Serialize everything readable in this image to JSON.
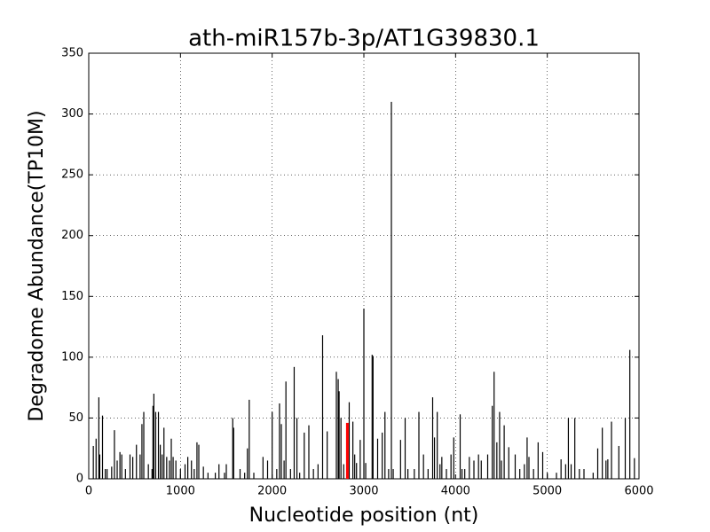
{
  "chart_data": {
    "type": "stem",
    "title": "ath-miR157b-3p/AT1G39830.1",
    "x_label": "Nucleotide position (nt)",
    "y_label": "Degradome Abundance(TP10M)",
    "xlim": [
      0,
      6000
    ],
    "ylim": [
      0,
      350
    ],
    "xticks": [
      0,
      1000,
      2000,
      3000,
      4000,
      5000,
      6000
    ],
    "yticks": [
      0,
      50,
      100,
      150,
      200,
      250,
      300,
      350
    ],
    "grid": true,
    "series": [
      {
        "color": "#000000",
        "x": [
          50,
          80,
          110,
          120,
          150,
          180,
          200,
          250,
          280,
          310,
          340,
          360,
          400,
          450,
          480,
          520,
          560,
          580,
          600,
          650,
          690,
          700,
          710,
          730,
          760,
          780,
          800,
          820,
          850,
          880,
          900,
          920,
          950,
          1000,
          1050,
          1080,
          1120,
          1150,
          1180,
          1200,
          1250,
          1300,
          1380,
          1420,
          1480,
          1500,
          1570,
          1580,
          1650,
          1700,
          1730,
          1750,
          1800,
          1900,
          1950,
          2000,
          2050,
          2080,
          2100,
          2130,
          2150,
          2200,
          2240,
          2270,
          2300,
          2350,
          2400,
          2450,
          2500,
          2550,
          2600,
          2700,
          2720,
          2730,
          2750,
          2780,
          2840,
          2880,
          2900,
          2920,
          2960,
          3000,
          3020,
          3090,
          3100,
          3150,
          3200,
          3230,
          3270,
          3300,
          3320,
          3400,
          3450,
          3480,
          3550,
          3600,
          3650,
          3700,
          3750,
          3770,
          3800,
          3830,
          3850,
          3900,
          3950,
          3980,
          4050,
          4070,
          4100,
          4150,
          4200,
          4250,
          4280,
          4350,
          4400,
          4420,
          4450,
          4480,
          4500,
          4530,
          4580,
          4650,
          4700,
          4750,
          4780,
          4800,
          4850,
          4900,
          4950,
          5000,
          5100,
          5150,
          5200,
          5230,
          5260,
          5300,
          5350,
          5400,
          5500,
          5550,
          5600,
          5640,
          5660,
          5700,
          5780,
          5850,
          5900,
          5950
        ],
        "values": [
          27,
          33,
          67,
          20,
          52,
          8,
          8,
          10,
          40,
          15,
          22,
          20,
          8,
          20,
          18,
          28,
          20,
          45,
          55,
          12,
          8,
          60,
          70,
          55,
          55,
          28,
          20,
          42,
          18,
          15,
          33,
          18,
          15,
          8,
          12,
          18,
          15,
          8,
          30,
          28,
          10,
          5,
          5,
          12,
          5,
          12,
          50,
          42,
          8,
          5,
          25,
          65,
          5,
          18,
          15,
          55,
          8,
          62,
          45,
          15,
          80,
          8,
          92,
          50,
          5,
          38,
          44,
          8,
          12,
          118,
          39,
          88,
          82,
          72,
          50,
          12,
          63,
          47,
          20,
          13,
          32,
          140,
          13,
          102,
          101,
          33,
          38,
          55,
          8,
          310,
          8,
          32,
          50,
          8,
          8,
          55,
          20,
          8,
          67,
          34,
          55,
          12,
          18,
          8,
          20,
          34,
          53,
          8,
          8,
          18,
          15,
          20,
          15,
          20,
          60,
          88,
          30,
          55,
          15,
          44,
          26,
          20,
          8,
          12,
          34,
          18,
          8,
          30,
          22,
          5,
          5,
          16,
          12,
          50,
          12,
          50,
          8,
          8,
          5,
          25,
          42,
          15,
          16,
          47,
          27,
          50,
          106,
          17
        ]
      },
      {
        "color": "#ff0000",
        "x": [
          2820
        ],
        "values": [
          46
        ]
      }
    ]
  }
}
